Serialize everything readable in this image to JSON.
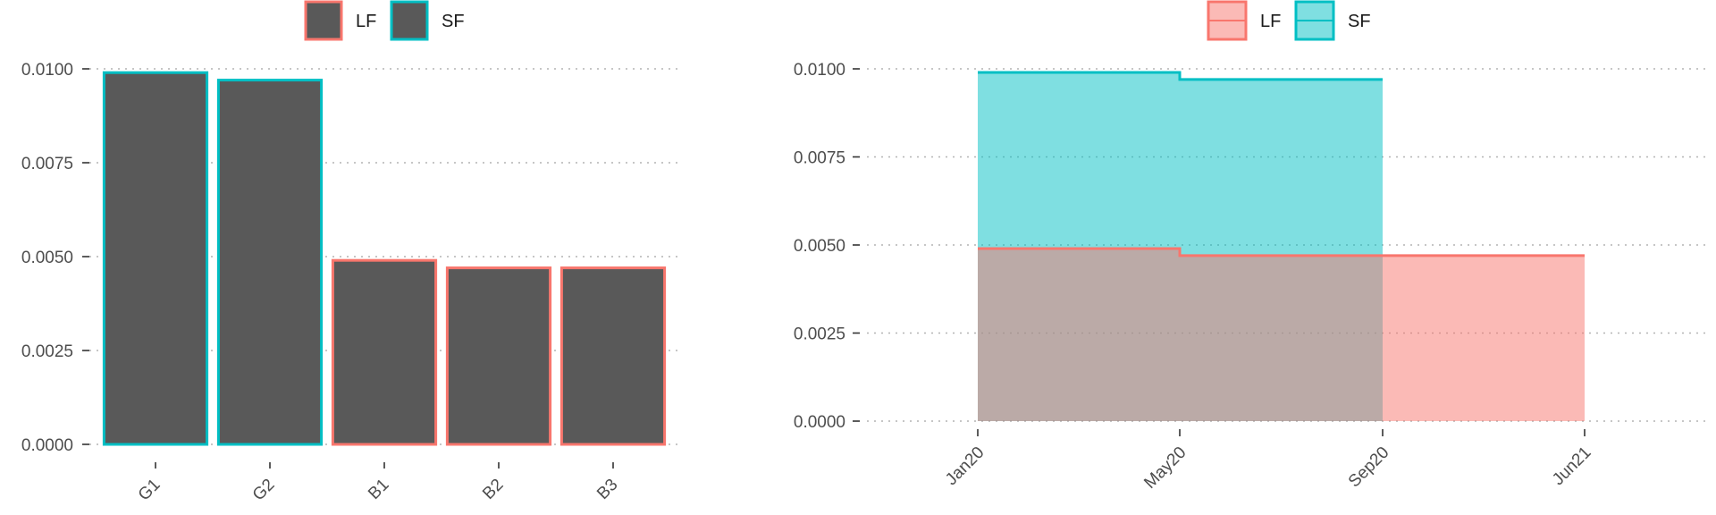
{
  "chart_data": [
    {
      "type": "bar",
      "categories": [
        "G1",
        "G2",
        "B1",
        "B2",
        "B3"
      ],
      "values": [
        0.0099,
        0.0097,
        0.0049,
        0.0047,
        0.0047
      ],
      "bar_group": [
        "SF",
        "SF",
        "LF",
        "LF",
        "LF"
      ],
      "ylim": [
        0,
        0.01
      ],
      "yticks": [
        "0.0000",
        "0.0025",
        "0.0050",
        "0.0075",
        "0.0100"
      ],
      "ytick_values": [
        0,
        0.0025,
        0.005,
        0.0075,
        0.01
      ],
      "fill_color": "#595959",
      "legend": {
        "position": "top",
        "entries": [
          {
            "label": "LF",
            "color": "#F8766D"
          },
          {
            "label": "SF",
            "color": "#00BFC4"
          }
        ]
      },
      "grid": "horizontal dotted"
    },
    {
      "type": "area",
      "x_ticks": [
        "Jan20",
        "May20",
        "Sep20",
        "Jun21"
      ],
      "ylim": [
        0,
        0.01
      ],
      "yticks": [
        "0.0000",
        "0.0025",
        "0.0050",
        "0.0075",
        "0.0100"
      ],
      "ytick_values": [
        0,
        0.0025,
        0.005,
        0.0075,
        0.01
      ],
      "series": [
        {
          "name": "LF",
          "color": "#F8766D",
          "x": [
            "Jan20",
            "May20",
            "Sep20",
            "Jun21"
          ],
          "values": [
            0.0049,
            0.0047,
            0.0047,
            0.0047
          ]
        },
        {
          "name": "SF",
          "color": "#00BFC4",
          "x": [
            "Jan20",
            "May20",
            "Sep20"
          ],
          "values": [
            0.0099,
            0.0097,
            0.0097
          ]
        }
      ],
      "step": true,
      "legend": {
        "position": "top",
        "entries": [
          {
            "label": "LF",
            "color": "#F8766D"
          },
          {
            "label": "SF",
            "color": "#00BFC4"
          }
        ]
      },
      "grid": "horizontal dotted"
    }
  ]
}
